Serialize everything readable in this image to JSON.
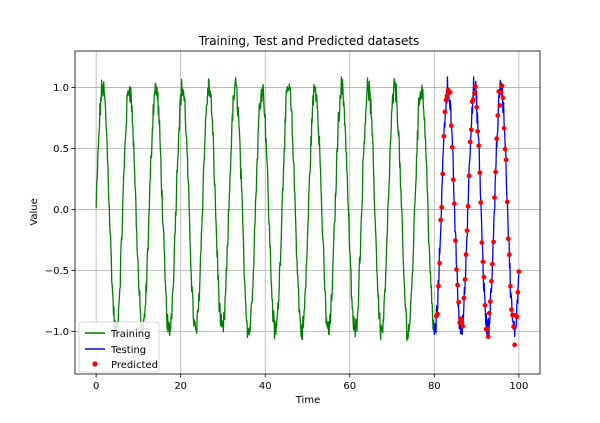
{
  "chart_data": {
    "type": "line",
    "title": "Training, Test and Predicted datasets",
    "xlabel": "Time",
    "ylabel": "Value",
    "xlim": [
      -5,
      105
    ],
    "ylim": [
      -1.35,
      1.3
    ],
    "grid": true,
    "x_ticks": [
      0,
      20,
      40,
      60,
      80,
      100
    ],
    "x_tick_labels": [
      "0",
      "20",
      "40",
      "60",
      "80",
      "100"
    ],
    "y_ticks": [
      -1.0,
      -0.5,
      0.0,
      0.5,
      1.0
    ],
    "y_tick_labels": [
      "−1.0",
      "−0.5",
      "0.0",
      "0.5",
      "1.0"
    ],
    "signal": {
      "form": "sine with noise",
      "period": 6.28,
      "amplitude": 1.0,
      "noise": 0.08
    },
    "series": [
      {
        "name": "Training",
        "kind": "line",
        "color": "#008000",
        "x_range": [
          0,
          80
        ],
        "step": 0.1
      },
      {
        "name": "Testing",
        "kind": "line",
        "color": "#0000ff",
        "x_range": [
          80,
          100
        ],
        "step": 0.1
      },
      {
        "name": "Predicted",
        "kind": "scatter",
        "color": "#ff0000",
        "x_range": [
          80.5,
          100
        ],
        "step": 0.25
      }
    ],
    "legend": {
      "placement": "lower-left",
      "entries": [
        "Training",
        "Testing",
        "Predicted"
      ]
    }
  }
}
